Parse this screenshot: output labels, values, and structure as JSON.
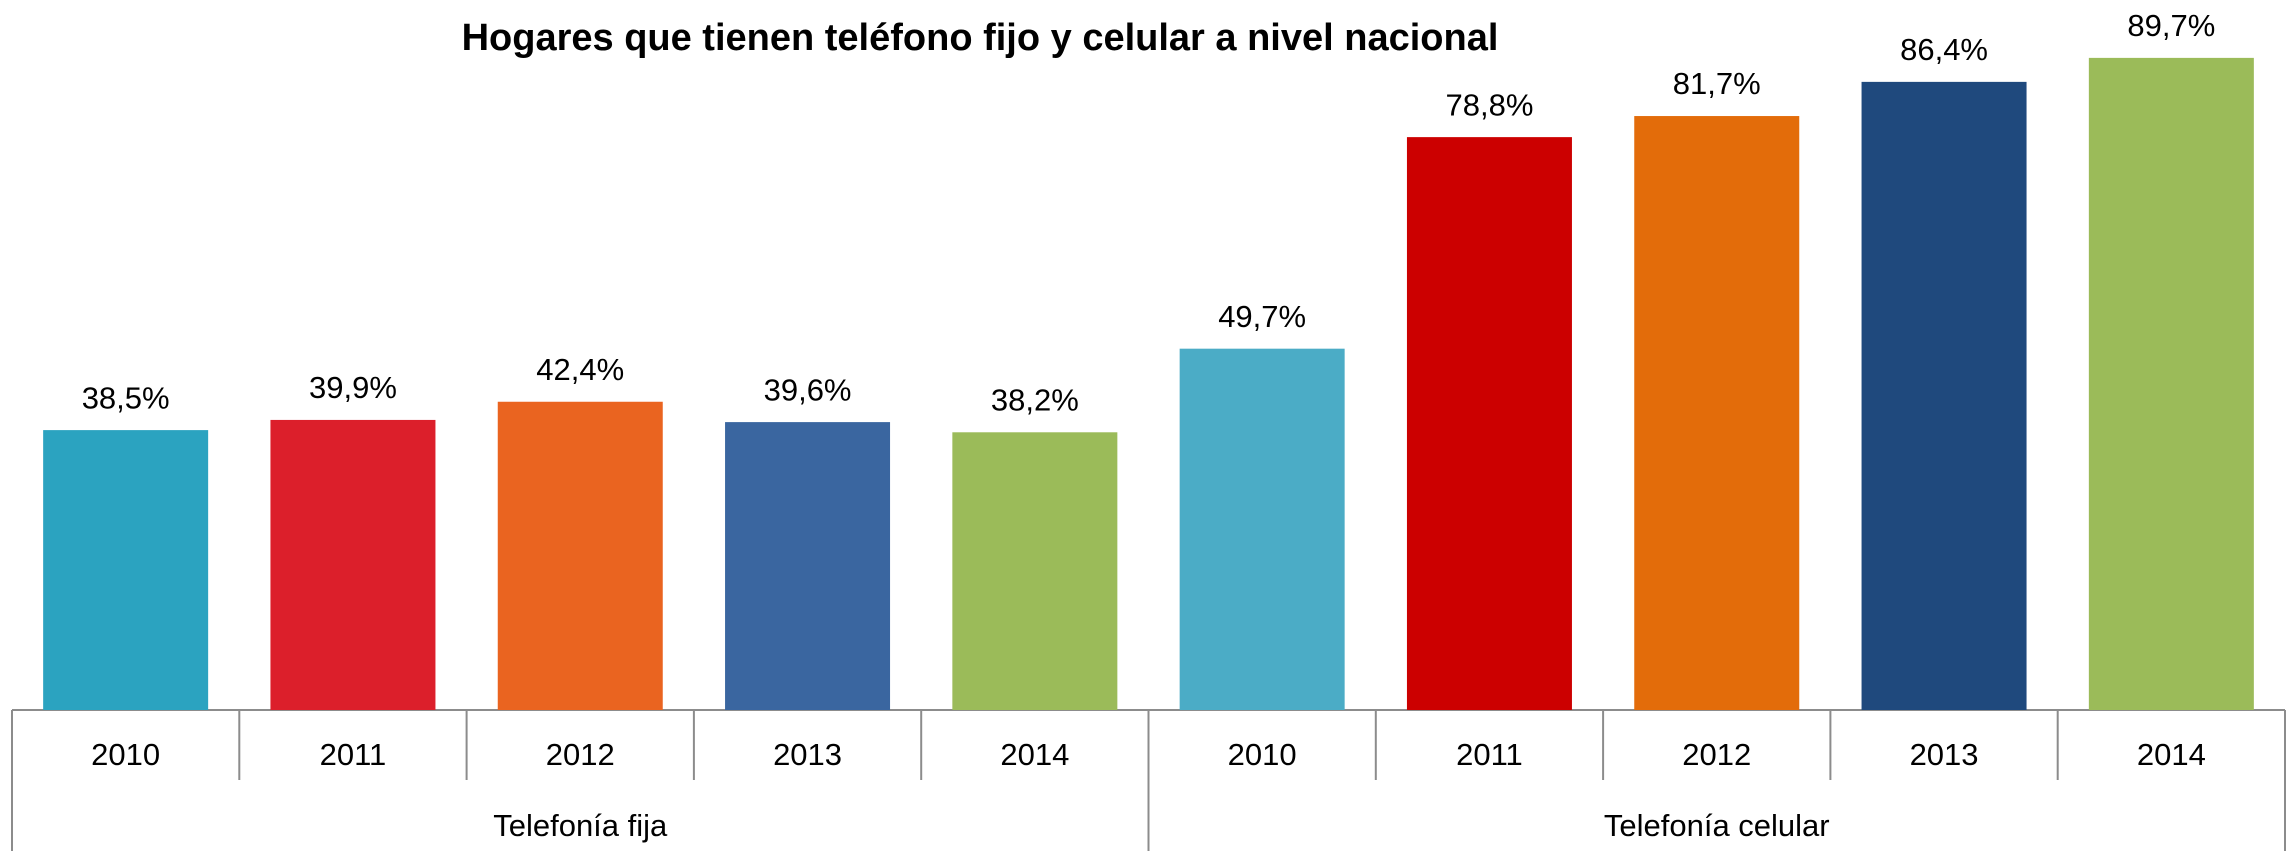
{
  "chart_data": {
    "type": "bar",
    "title": "Hogares que tienen teléfono fijo y celular a nivel nacional",
    "series": [
      {
        "name": "Telefonía fija",
        "categories": [
          "2010",
          "2011",
          "2012",
          "2013",
          "2014"
        ],
        "values": [
          38.5,
          39.9,
          42.4,
          39.6,
          38.2
        ],
        "value_labels": [
          "38,5%",
          "39,9%",
          "42,4%",
          "39,6%",
          "38,2%"
        ],
        "colors": [
          "#2ba3c0",
          "#dc1f2b",
          "#ea6420",
          "#3a66a0",
          "#9bbb59"
        ]
      },
      {
        "name": "Telefonía celular",
        "categories": [
          "2010",
          "2011",
          "2012",
          "2013",
          "2014"
        ],
        "values": [
          49.7,
          78.8,
          81.7,
          86.4,
          89.7
        ],
        "value_labels": [
          "49,7%",
          "78,8%",
          "81,7%",
          "86,4%",
          "89,7%"
        ],
        "colors": [
          "#4bacc6",
          "#cc0000",
          "#e36c0a",
          "#1f497d",
          "#9bbb59"
        ]
      }
    ]
  }
}
